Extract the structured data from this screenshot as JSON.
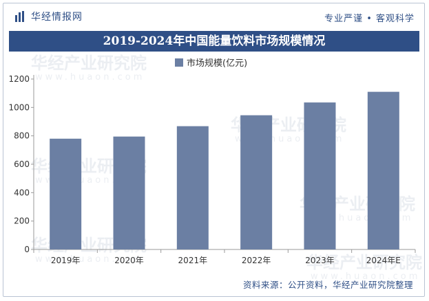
{
  "header": {
    "brand_name": "华经情报网",
    "slogan": "专业严谨 • 客观科学"
  },
  "footer": {
    "source": "资料来源：公开资料，华经产业研究院整理"
  },
  "watermark": {
    "text": "华经产业研究院",
    "url": "www.huaon.com"
  },
  "colors": {
    "bar": "#6b7fa3",
    "brand": "#2f4f86"
  },
  "chart_data": {
    "type": "bar",
    "title": "2019-2024年中国能量饮料市场规模情况",
    "categories": [
      "2019年",
      "2020年",
      "2021年",
      "2022年",
      "2023年",
      "2024年E"
    ],
    "series": [
      {
        "name": "市场规模(亿元)",
        "values": [
          780,
          795,
          868,
          945,
          1035,
          1110
        ]
      }
    ],
    "ylim": [
      0,
      1200
    ],
    "yticks": [
      0,
      200,
      400,
      600,
      800,
      1000,
      1200
    ],
    "legend_position": "top-center",
    "grid": false
  }
}
